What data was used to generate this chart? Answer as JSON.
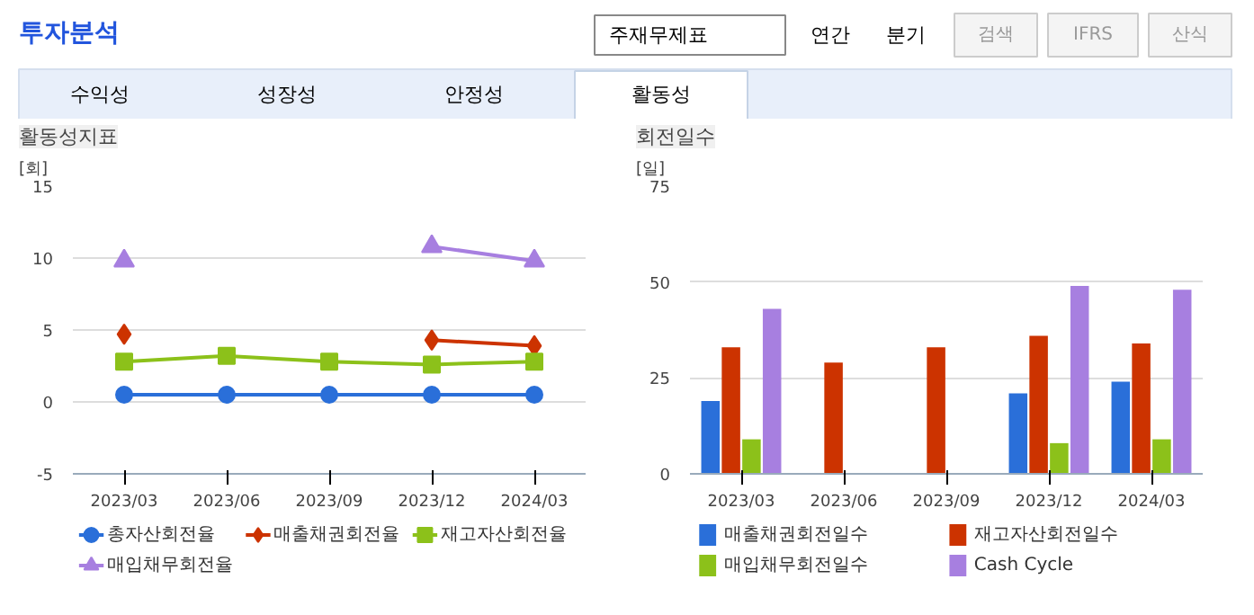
{
  "chart_data": [
    {
      "type": "other",
      "title": "투자분석",
      "annotations": [
        "주재무제표",
        "연간",
        "분기",
        "검색",
        "IFRS",
        "산식",
        "수익성",
        "성장성",
        "안정성",
        "활동성"
      ]
    },
    {
      "type": "line",
      "title": "활동성지표",
      "ylabel": "[회]",
      "categories": [
        "2023/03",
        "2023/06",
        "2023/09",
        "2023/12",
        "2024/03"
      ],
      "ylim": [
        -5,
        15
      ],
      "yticks": [
        -5,
        0,
        5,
        10,
        15
      ],
      "grid": "y",
      "legend": "bottom",
      "series": [
        {
          "name": "총자산회전율",
          "color": "#2a6fd9",
          "marker": "circle",
          "values": [
            0.5,
            0.5,
            0.5,
            0.5,
            0.5
          ]
        },
        {
          "name": "매출채권회전율",
          "color": "#cc3300",
          "marker": "diamond",
          "values": [
            4.7,
            null,
            null,
            4.3,
            3.9
          ]
        },
        {
          "name": "재고자산회전율",
          "color": "#8cc11a",
          "marker": "square",
          "values": [
            2.8,
            3.2,
            2.8,
            2.6,
            2.8
          ]
        },
        {
          "name": "매입채무회전율",
          "color": "#a77fe0",
          "marker": "triangle",
          "values": [
            9.8,
            null,
            null,
            10.8,
            9.8
          ]
        }
      ]
    },
    {
      "type": "bar",
      "title": "회전일수",
      "ylabel": "[일]",
      "categories": [
        "2023/03",
        "2023/06",
        "2023/09",
        "2023/12",
        "2024/03"
      ],
      "ylim": [
        0,
        75
      ],
      "yticks": [
        0,
        25,
        50,
        75
      ],
      "grid": "y",
      "legend": "bottom",
      "series": [
        {
          "name": "매출채권회전일수",
          "color": "#2a6fd9",
          "values": [
            19,
            null,
            null,
            21,
            24
          ]
        },
        {
          "name": "재고자산회전일수",
          "color": "#cc3300",
          "values": [
            33,
            29,
            33,
            36,
            34
          ]
        },
        {
          "name": "매입채무회전일수",
          "color": "#8cc11a",
          "values": [
            9,
            null,
            null,
            8,
            9
          ]
        },
        {
          "name": "Cash Cycle",
          "color": "#a77fe0",
          "values": [
            43,
            null,
            null,
            49,
            48
          ]
        }
      ]
    }
  ]
}
